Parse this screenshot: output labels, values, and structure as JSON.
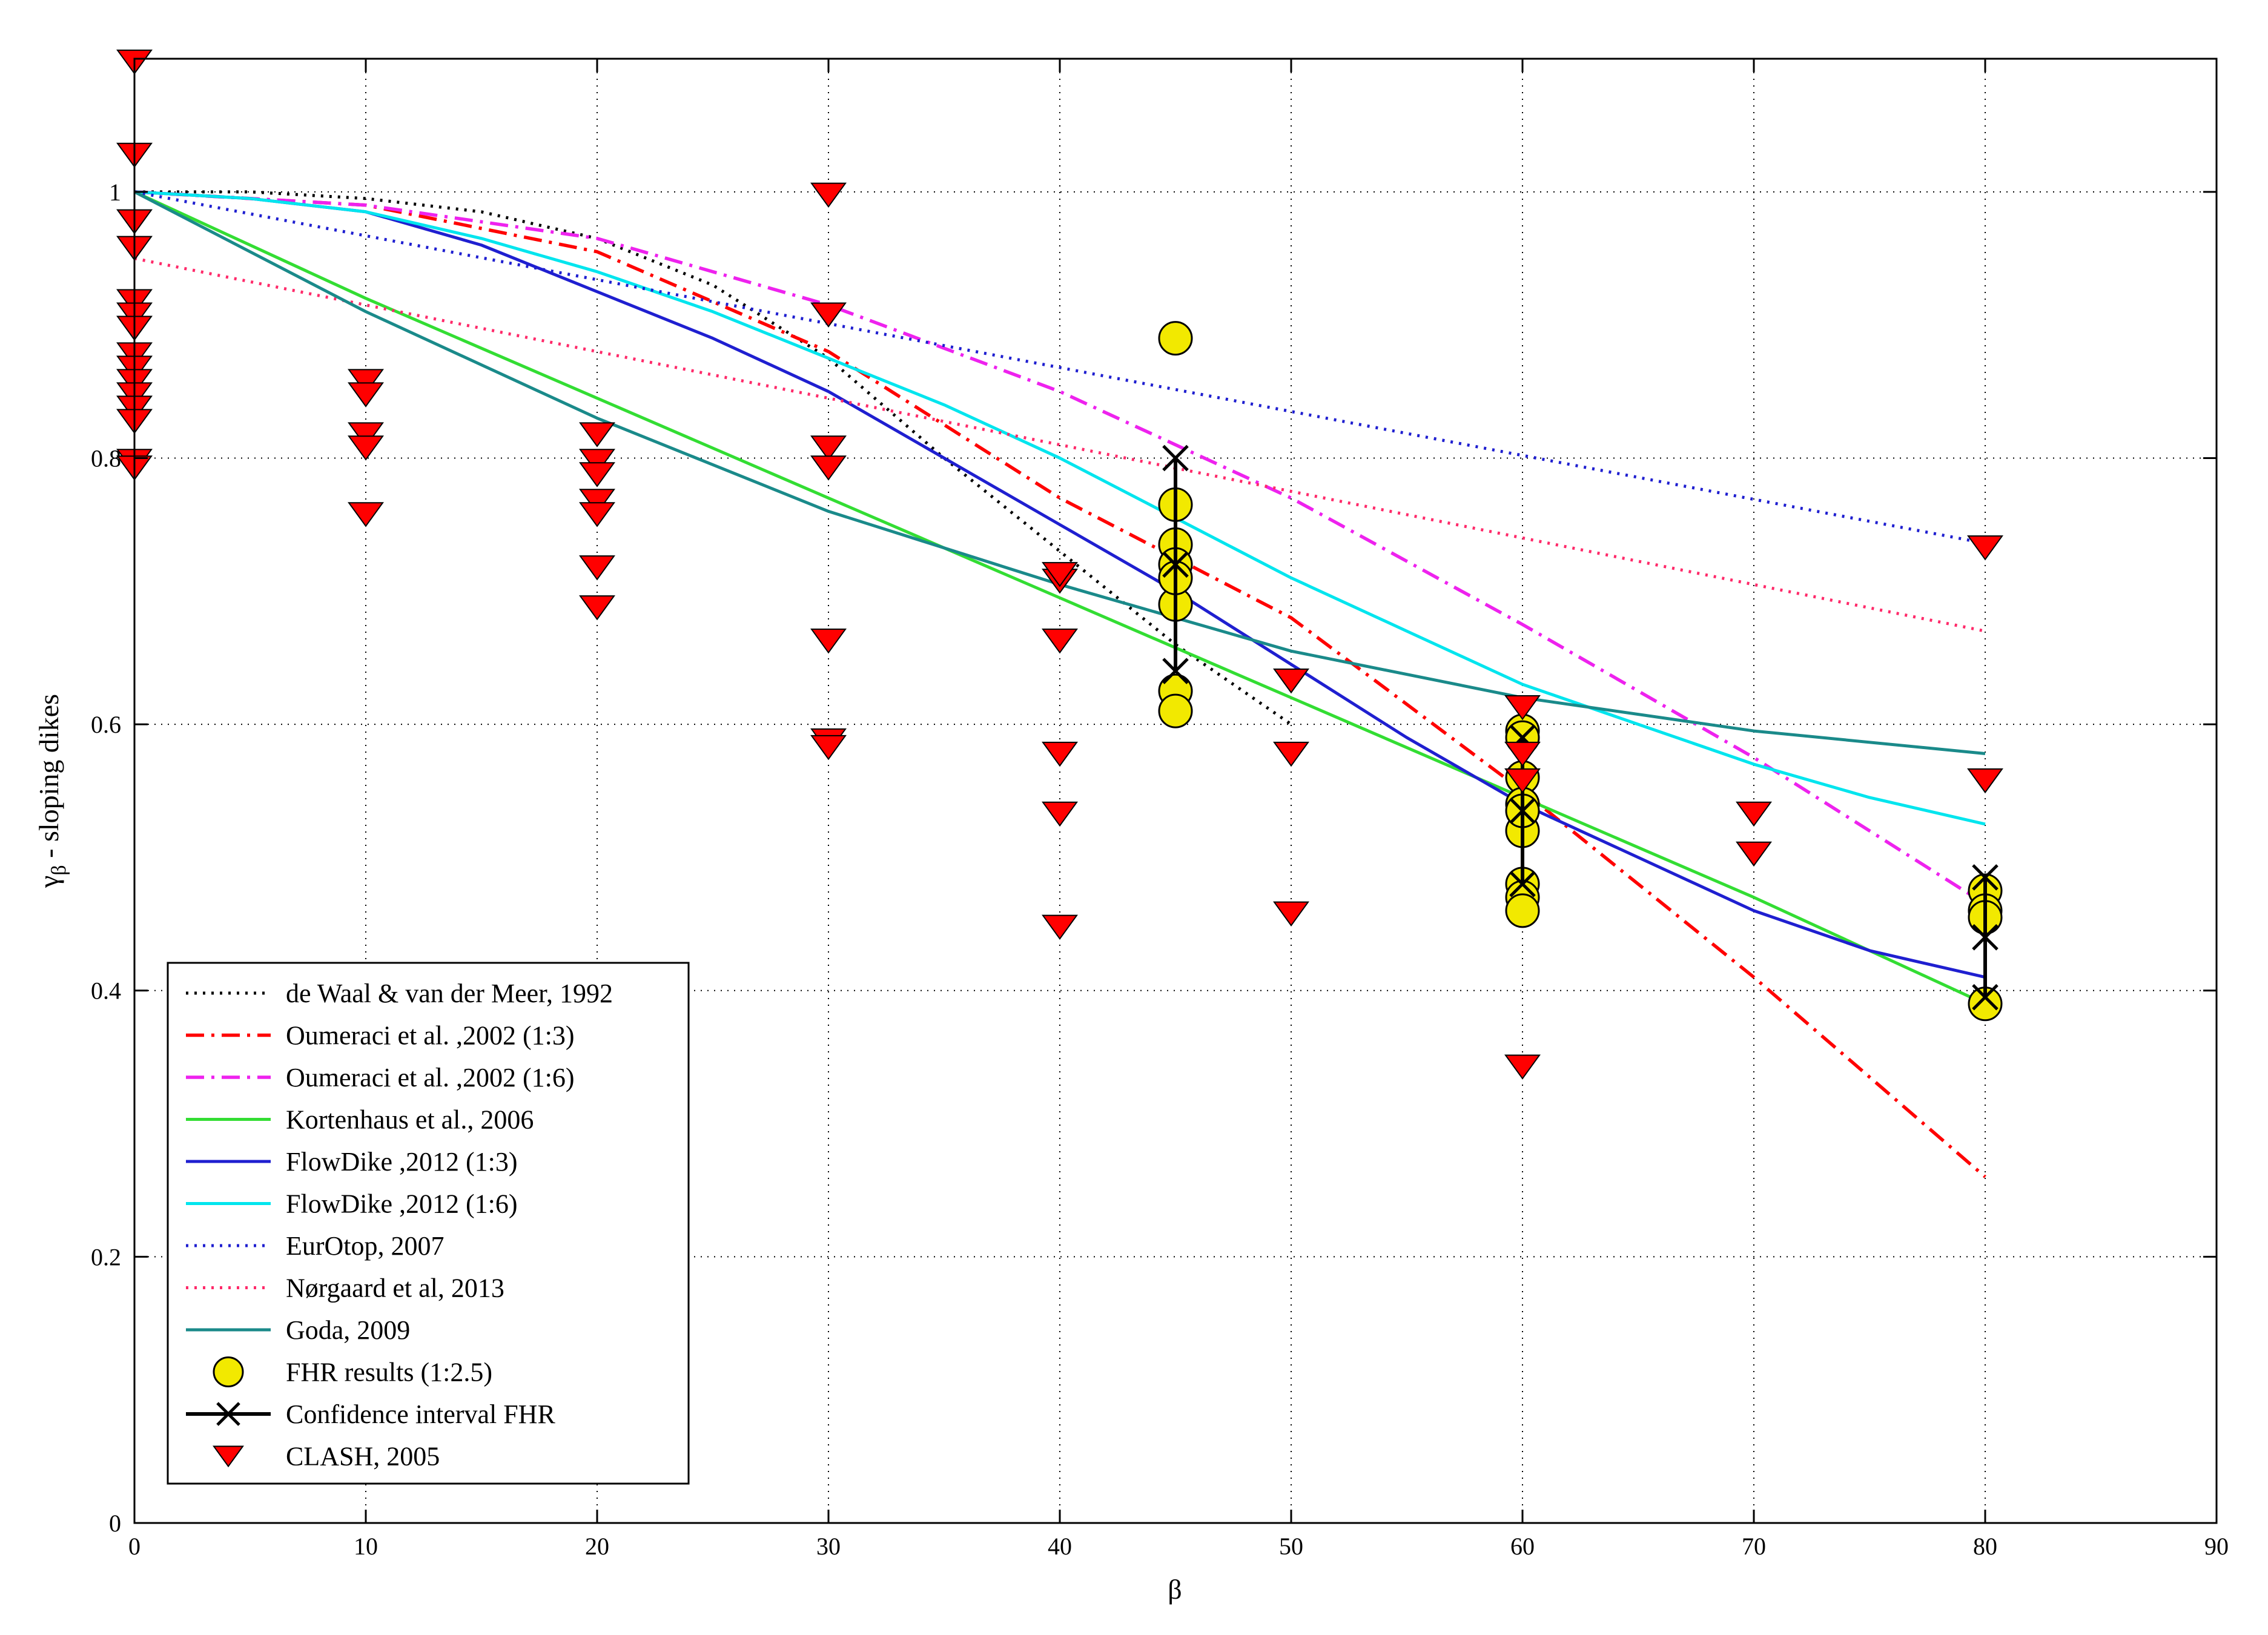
{
  "chart_data": {
    "type": "line",
    "title": "",
    "xlabel": "β",
    "ylabel_main": "γ",
    "ylabel_sub": "β",
    "ylabel_rest": " - sloping dikes",
    "xlim": [
      0,
      90
    ],
    "ylim": [
      0,
      1.1
    ],
    "xticks": [
      0,
      10,
      20,
      30,
      40,
      50,
      60,
      70,
      80,
      90
    ],
    "yticks": [
      0,
      0.2,
      0.4,
      0.6,
      0.8,
      1
    ],
    "xtick_labels": [
      "0",
      "10",
      "20",
      "30",
      "40",
      "50",
      "60",
      "70",
      "80",
      "90"
    ],
    "ytick_labels": [
      "0",
      "0.2",
      "0.4",
      "0.6",
      "0.8",
      "1"
    ],
    "grid": true,
    "legend_position": "bottom-left",
    "series": [
      {
        "name": "de Waal & van der Meer, 1992",
        "kind": "line",
        "color": "#000000",
        "dash": "dotted",
        "x": [
          0,
          5,
          10,
          15,
          20,
          25,
          30,
          35,
          40,
          45,
          50
        ],
        "y": [
          1.0,
          1.0,
          0.995,
          0.985,
          0.965,
          0.93,
          0.875,
          0.8,
          0.73,
          0.66,
          0.6
        ]
      },
      {
        "name": "Oumeraci et al. ,2002 (1:3)",
        "kind": "line",
        "color": "#ff0000",
        "dash": "dashdot",
        "x": [
          0,
          10,
          20,
          30,
          40,
          50,
          60,
          70,
          80
        ],
        "y": [
          1.0,
          0.99,
          0.955,
          0.88,
          0.77,
          0.68,
          0.55,
          0.41,
          0.26
        ]
      },
      {
        "name": "Oumeraci et al. ,2002 (1:6)",
        "kind": "line",
        "color": "#ee22ee",
        "dash": "dashdot",
        "x": [
          0,
          10,
          20,
          30,
          40,
          50,
          60,
          70,
          80
        ],
        "y": [
          1.0,
          0.99,
          0.965,
          0.915,
          0.85,
          0.77,
          0.675,
          0.575,
          0.465
        ]
      },
      {
        "name": "Kortenhaus et al., 2006",
        "kind": "line",
        "color": "#33dd33",
        "dash": "solid",
        "x": [
          0,
          10,
          20,
          30,
          40,
          50,
          60,
          70,
          80
        ],
        "y": [
          1.0,
          0.92,
          0.845,
          0.77,
          0.695,
          0.62,
          0.545,
          0.47,
          0.39
        ]
      },
      {
        "name": "FlowDike ,2012 (1:3)",
        "kind": "line",
        "color": "#1f1fd0",
        "dash": "solid",
        "x": [
          0,
          5,
          10,
          15,
          20,
          25,
          30,
          35,
          40,
          45,
          50,
          55,
          60,
          65,
          70,
          75,
          80
        ],
        "y": [
          1.0,
          0.995,
          0.985,
          0.96,
          0.925,
          0.89,
          0.85,
          0.8,
          0.75,
          0.7,
          0.645,
          0.59,
          0.54,
          0.5,
          0.46,
          0.43,
          0.41
        ]
      },
      {
        "name": "FlowDike ,2012 (1:6)",
        "kind": "line",
        "color": "#00e5ee",
        "dash": "solid",
        "x": [
          0,
          5,
          10,
          15,
          20,
          25,
          30,
          35,
          40,
          45,
          50,
          55,
          60,
          65,
          70,
          75,
          80
        ],
        "y": [
          1.0,
          0.995,
          0.985,
          0.965,
          0.94,
          0.91,
          0.875,
          0.84,
          0.8,
          0.755,
          0.71,
          0.67,
          0.63,
          0.6,
          0.57,
          0.545,
          0.525
        ]
      },
      {
        "name": "EurOtop, 2007",
        "kind": "line",
        "color": "#1f1fd0",
        "dash": "dotted",
        "x": [
          0,
          10,
          20,
          30,
          40,
          50,
          60,
          70,
          80
        ],
        "y": [
          1.0,
          0.967,
          0.934,
          0.901,
          0.868,
          0.835,
          0.802,
          0.769,
          0.736
        ]
      },
      {
        "name": "Nørgaard et al, 2013",
        "kind": "line",
        "color": "#ff2a6a",
        "dash": "dotted",
        "x": [
          0,
          10,
          20,
          30,
          40,
          50,
          60,
          70,
          80
        ],
        "y": [
          0.95,
          0.915,
          0.88,
          0.845,
          0.81,
          0.775,
          0.74,
          0.705,
          0.67
        ]
      },
      {
        "name": "Goda, 2009",
        "kind": "line",
        "color": "#1a8a8a",
        "dash": "solid",
        "x": [
          0,
          10,
          20,
          30,
          40,
          50,
          60,
          70,
          80
        ],
        "y": [
          1.0,
          0.91,
          0.83,
          0.76,
          0.705,
          0.655,
          0.62,
          0.595,
          0.578
        ]
      },
      {
        "name": "FHR results (1:2.5)",
        "kind": "circle",
        "color": "#f2e900",
        "x": [
          45,
          45,
          45,
          45,
          45,
          45,
          45,
          45,
          60,
          60,
          60,
          60,
          60,
          60,
          60,
          60,
          60,
          80,
          80,
          80,
          80
        ],
        "y": [
          0.89,
          0.765,
          0.735,
          0.72,
          0.69,
          0.625,
          0.61,
          0.71,
          0.595,
          0.59,
          0.56,
          0.54,
          0.52,
          0.48,
          0.47,
          0.46,
          0.535,
          0.475,
          0.46,
          0.455,
          0.39
        ]
      },
      {
        "name": "Confidence interval FHR",
        "kind": "errorbar",
        "color": "#000000",
        "x": [
          45,
          60,
          80
        ],
        "y_high": [
          0.8,
          0.59,
          0.485
        ],
        "y_low": [
          0.64,
          0.48,
          0.395
        ],
        "y_mid": [
          0.72,
          0.535,
          0.44
        ]
      },
      {
        "name": "CLASH, 2005",
        "kind": "triangle",
        "color": "#ff0000",
        "x": [
          0,
          0,
          0,
          0,
          0,
          0,
          0,
          0,
          0,
          0,
          0,
          0,
          0,
          0,
          0,
          10,
          10,
          10,
          10,
          10,
          20,
          20,
          20,
          20,
          20,
          20,
          20,
          30,
          30,
          30,
          30,
          30,
          30,
          30,
          40,
          40,
          40,
          40,
          40,
          40,
          50,
          50,
          50,
          60,
          60,
          60,
          60,
          70,
          70,
          80,
          80
        ],
        "y": [
          1.1,
          1.03,
          0.98,
          0.96,
          0.92,
          0.91,
          0.9,
          0.88,
          0.87,
          0.86,
          0.85,
          0.84,
          0.83,
          0.8,
          0.795,
          0.86,
          0.85,
          0.82,
          0.81,
          0.76,
          0.82,
          0.8,
          0.79,
          0.77,
          0.76,
          0.72,
          0.69,
          1.0,
          0.91,
          0.81,
          0.795,
          0.665,
          0.59,
          0.585,
          0.71,
          0.665,
          0.58,
          0.535,
          0.45,
          0.715,
          0.635,
          0.58,
          0.46,
          0.615,
          0.58,
          0.56,
          0.345,
          0.535,
          0.505,
          0.735,
          0.56
        ]
      }
    ]
  }
}
